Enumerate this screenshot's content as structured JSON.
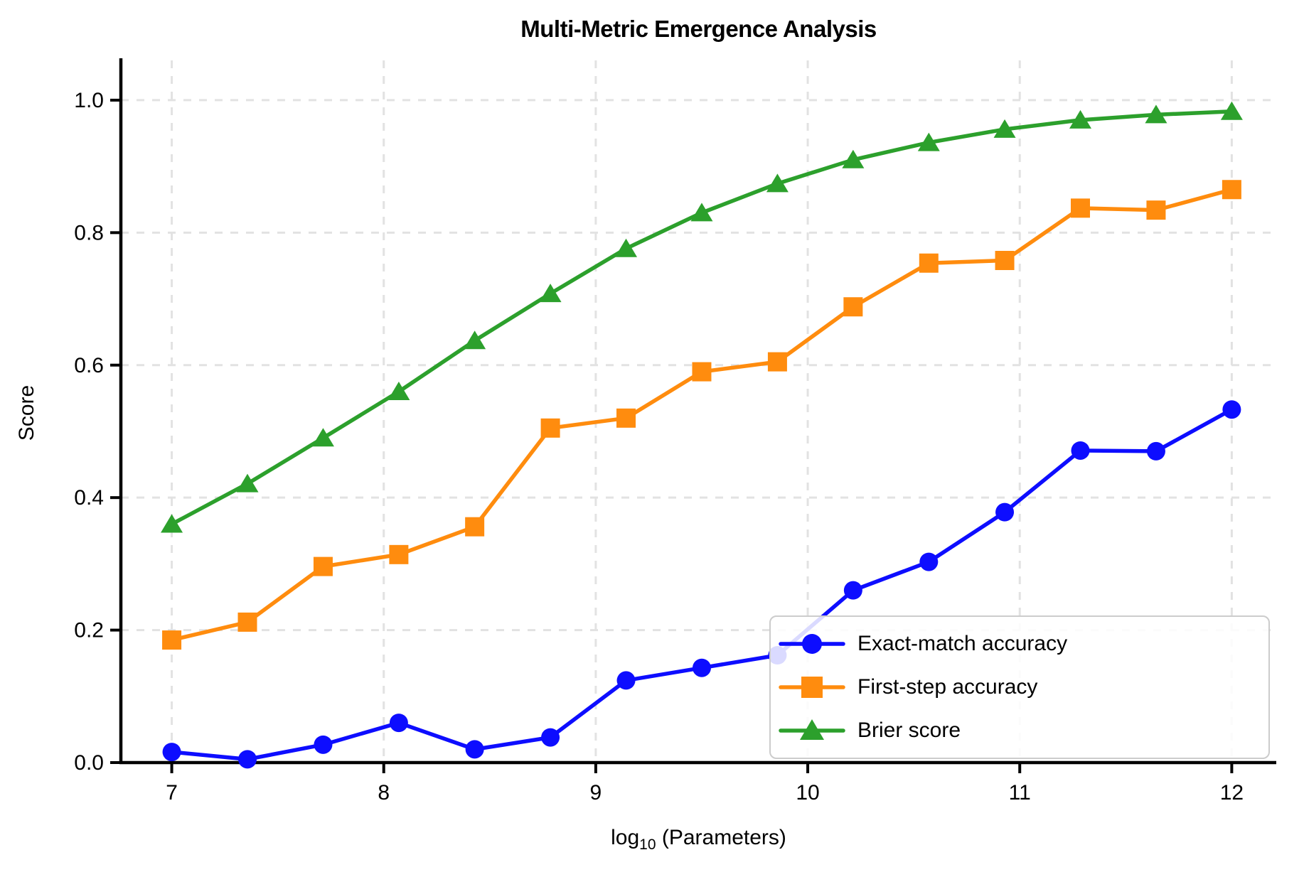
{
  "figure": {
    "title": "Multi-Metric Emergence Analysis",
    "ylabel": "Score",
    "xlabel_base": "log",
    "xlabel_subscript": "10",
    "xlabel_rest": " (Parameters)"
  },
  "chart_data": {
    "type": "line",
    "title": "Multi-Metric Emergence Analysis",
    "xlabel": "log10 (Parameters)",
    "ylabel": "Score",
    "xlim": [
      6.76,
      12.21
    ],
    "ylim": [
      0,
      1.06
    ],
    "x_ticks": [
      7,
      8,
      9,
      10,
      11,
      12
    ],
    "y_ticks": [
      0.0,
      0.2,
      0.4,
      0.6,
      0.8,
      1.0
    ],
    "y_tick_labels": [
      "0.0",
      "0.2",
      "0.4",
      "0.6",
      "0.8",
      "1.0"
    ],
    "grid": true,
    "grid_color": "#e2e2e2",
    "legend_position": "lower right",
    "x": [
      7.0,
      7.357,
      7.714,
      8.071,
      8.429,
      8.786,
      9.143,
      9.5,
      9.857,
      10.214,
      10.571,
      10.929,
      11.286,
      11.643,
      12.0
    ],
    "series": [
      {
        "name": "Exact-match accuracy",
        "marker": "circle",
        "color": "#0d0dff",
        "values": [
          0.016,
          0.005,
          0.027,
          0.06,
          0.02,
          0.038,
          0.124,
          0.143,
          0.162,
          0.26,
          0.303,
          0.378,
          0.471,
          0.47,
          0.533
        ]
      },
      {
        "name": "First-step accuracy",
        "marker": "square",
        "color": "#ff8c0e",
        "values": [
          0.185,
          0.212,
          0.296,
          0.314,
          0.356,
          0.505,
          0.52,
          0.59,
          0.605,
          0.688,
          0.754,
          0.758,
          0.837,
          0.834,
          0.865
        ]
      },
      {
        "name": "Brier score",
        "marker": "triangle",
        "color": "#2ca02c",
        "values": [
          0.36,
          0.421,
          0.49,
          0.56,
          0.637,
          0.708,
          0.776,
          0.83,
          0.874,
          0.91,
          0.936,
          0.956,
          0.97,
          0.978,
          0.983
        ]
      }
    ]
  }
}
